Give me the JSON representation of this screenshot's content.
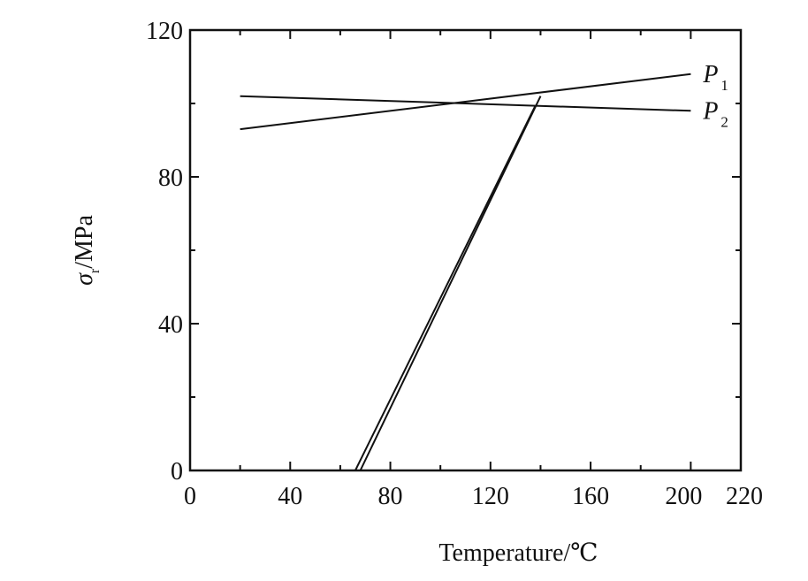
{
  "chart_data": {
    "type": "line",
    "xlabel": "Temperature/℃",
    "ylabel_symbol": "σ",
    "ylabel_subscript": "r",
    "ylabel_unit": "/MPa",
    "xlim": [
      0,
      220
    ],
    "ylim": [
      0,
      120
    ],
    "x_ticks": [
      0,
      40,
      80,
      120,
      160,
      200,
      220
    ],
    "x_tick_labels": [
      "0",
      "40",
      "80",
      "120",
      "160",
      "200",
      "220"
    ],
    "y_ticks": [
      0,
      40,
      80,
      120
    ],
    "y_tick_labels": [
      "0",
      "40",
      "80",
      "120"
    ],
    "grid": false,
    "series": [
      {
        "name": "P1",
        "label_main": "P",
        "label_sub": "1",
        "x": [
          20,
          200
        ],
        "y": [
          93,
          108
        ]
      },
      {
        "name": "P2",
        "label_main": "P",
        "label_sub": "2",
        "x": [
          20,
          200
        ],
        "y": [
          102,
          98
        ]
      },
      {
        "name": "",
        "x": [
          66,
          138
        ],
        "y": [
          0,
          99.5
        ]
      },
      {
        "name": "",
        "x": [
          68,
          140
        ],
        "y": [
          0,
          102
        ]
      }
    ]
  }
}
